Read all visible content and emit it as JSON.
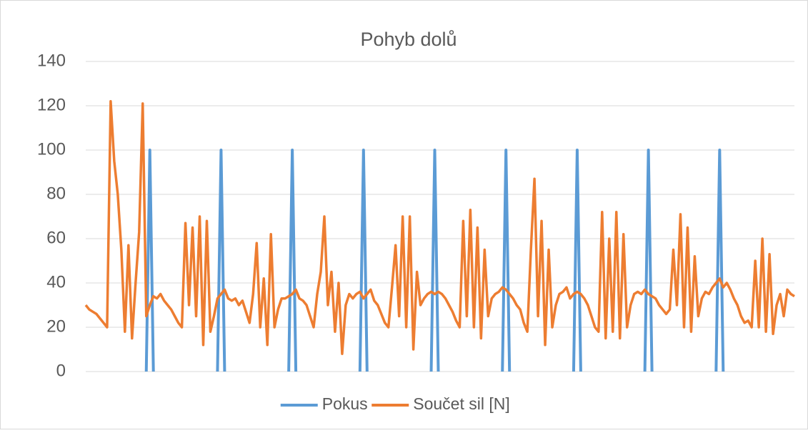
{
  "chart_data": {
    "type": "line",
    "title": "Pohyb dolů",
    "ylim": [
      0,
      140
    ],
    "yticks": [
      0,
      20,
      40,
      60,
      80,
      100,
      120,
      140
    ],
    "grid": true,
    "legend": "bottom",
    "series": [
      {
        "name": "Pokus",
        "color": "#5b9bd5",
        "values": [
          null,
          null,
          null,
          null,
          null,
          null,
          null,
          null,
          null,
          null,
          null,
          null,
          null,
          null,
          null,
          null,
          null,
          0,
          100,
          0,
          null,
          null,
          null,
          null,
          null,
          null,
          null,
          null,
          null,
          null,
          null,
          null,
          null,
          null,
          null,
          null,
          null,
          0,
          100,
          0,
          null,
          null,
          null,
          null,
          null,
          null,
          null,
          null,
          null,
          null,
          null,
          null,
          null,
          null,
          null,
          null,
          null,
          0,
          100,
          0,
          null,
          null,
          null,
          null,
          null,
          null,
          null,
          null,
          null,
          null,
          null,
          null,
          null,
          null,
          null,
          null,
          null,
          0,
          100,
          0,
          null,
          null,
          null,
          null,
          null,
          null,
          null,
          null,
          null,
          null,
          null,
          null,
          null,
          null,
          null,
          null,
          null,
          0,
          100,
          0,
          null,
          null,
          null,
          null,
          null,
          null,
          null,
          null,
          null,
          null,
          null,
          null,
          null,
          null,
          null,
          null,
          null,
          0,
          100,
          0,
          null,
          null,
          null,
          null,
          null,
          null,
          null,
          null,
          null,
          null,
          null,
          null,
          null,
          null,
          null,
          null,
          null,
          0,
          100,
          0,
          null,
          null,
          null,
          null,
          null,
          null,
          null,
          null,
          null,
          null,
          null,
          null,
          null,
          null,
          null,
          null,
          null,
          0,
          100,
          0,
          null,
          null,
          null,
          null,
          null,
          null,
          null,
          null,
          null,
          null,
          null,
          null,
          null,
          null,
          null,
          null,
          null,
          0,
          100,
          0,
          null,
          null,
          null,
          null,
          null,
          null,
          null,
          null,
          null,
          null,
          null,
          null,
          null,
          null,
          null,
          null,
          null,
          null,
          null,
          null
        ]
      },
      {
        "name": "Součet sil [N]",
        "color": "#ed7d31",
        "values": [
          30,
          28,
          27,
          26,
          24,
          22,
          20,
          122,
          95,
          80,
          55,
          18,
          57,
          15,
          40,
          63,
          121,
          25,
          30,
          34,
          33,
          35,
          32,
          30,
          28,
          25,
          22,
          20,
          67,
          30,
          65,
          25,
          70,
          12,
          68,
          18,
          25,
          33,
          35,
          37,
          33,
          32,
          33,
          30,
          32,
          27,
          22,
          35,
          58,
          20,
          42,
          12,
          62,
          20,
          28,
          33,
          33,
          34,
          35,
          37,
          33,
          32,
          30,
          25,
          20,
          35,
          45,
          70,
          30,
          45,
          18,
          40,
          8,
          30,
          35,
          33,
          35,
          36,
          33,
          35,
          37,
          32,
          30,
          26,
          22,
          20,
          38,
          57,
          25,
          70,
          20,
          70,
          10,
          45,
          30,
          33,
          35,
          36,
          35,
          36,
          35,
          33,
          30,
          27,
          23,
          20,
          68,
          25,
          73,
          20,
          65,
          15,
          55,
          25,
          33,
          35,
          36,
          38,
          37,
          35,
          33,
          30,
          28,
          22,
          18,
          55,
          87,
          25,
          68,
          12,
          55,
          20,
          30,
          35,
          36,
          38,
          33,
          35,
          36,
          35,
          33,
          30,
          25,
          20,
          18,
          72,
          15,
          60,
          18,
          72,
          15,
          62,
          20,
          30,
          35,
          36,
          35,
          37,
          35,
          34,
          33,
          30,
          28,
          26,
          28,
          55,
          30,
          71,
          20,
          65,
          18,
          52,
          25,
          33,
          36,
          35,
          38,
          40,
          42,
          38,
          40,
          37,
          33,
          30,
          25,
          22,
          23,
          20,
          50,
          20,
          60,
          18,
          53,
          17,
          30,
          35,
          25,
          37,
          35,
          34
        ]
      }
    ]
  }
}
